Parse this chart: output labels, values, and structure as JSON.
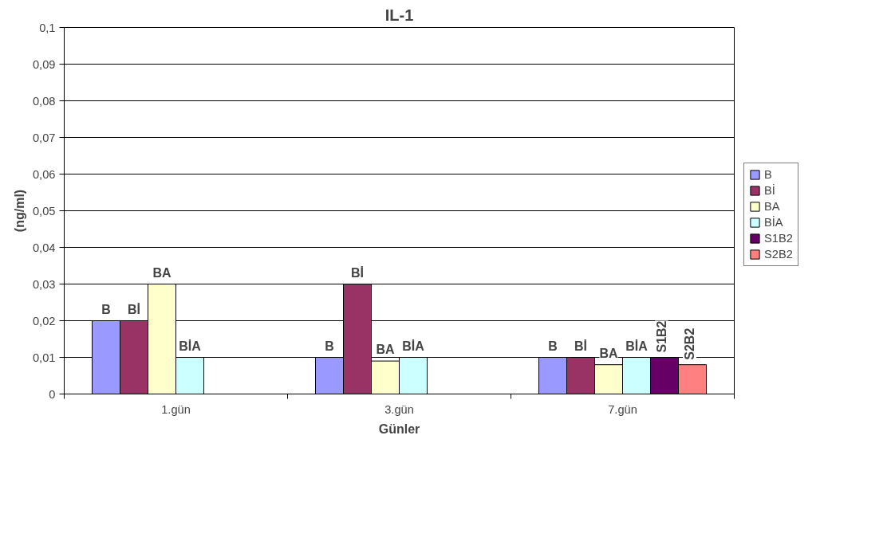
{
  "chart_data": {
    "type": "bar",
    "title": "IL-1",
    "xlabel": "Günler",
    "ylabel": "(ng/ml)",
    "categories": [
      "1.gün",
      "3.gün",
      "7.gün"
    ],
    "series": [
      {
        "name": "B",
        "color": "#9999ff",
        "values": [
          0.02,
          0.01,
          0.01
        ]
      },
      {
        "name": "Bİ",
        "color": "#993366",
        "values": [
          0.02,
          0.03,
          0.01
        ]
      },
      {
        "name": "BA",
        "color": "#ffffcc",
        "values": [
          0.03,
          0.009,
          0.008
        ]
      },
      {
        "name": "BİA",
        "color": "#ccffff",
        "values": [
          0.01,
          0.01,
          0.01
        ]
      },
      {
        "name": "S1B2",
        "color": "#660066",
        "values": [
          null,
          null,
          0.01
        ]
      },
      {
        "name": "S2B2",
        "color": "#ff8080",
        "values": [
          null,
          null,
          0.008
        ]
      }
    ],
    "ylim": [
      0,
      0.1
    ],
    "yticks": [
      0,
      {
        "value": 0.01,
        "label": "0,01"
      },
      {
        "value": 0.02,
        "label": "0,02"
      },
      {
        "value": 0.03,
        "label": "0,03"
      },
      {
        "value": 0.04,
        "label": "0,04"
      },
      {
        "value": 0.05,
        "label": "0,05"
      },
      {
        "value": 0.06,
        "label": "0,06"
      },
      {
        "value": 0.07,
        "label": "0,07"
      },
      {
        "value": 0.08,
        "label": "0,08"
      },
      {
        "value": 0.09,
        "label": "0,09"
      },
      {
        "value": 0.1,
        "label": "0,1"
      }
    ],
    "grid": "y",
    "legend": "right"
  }
}
